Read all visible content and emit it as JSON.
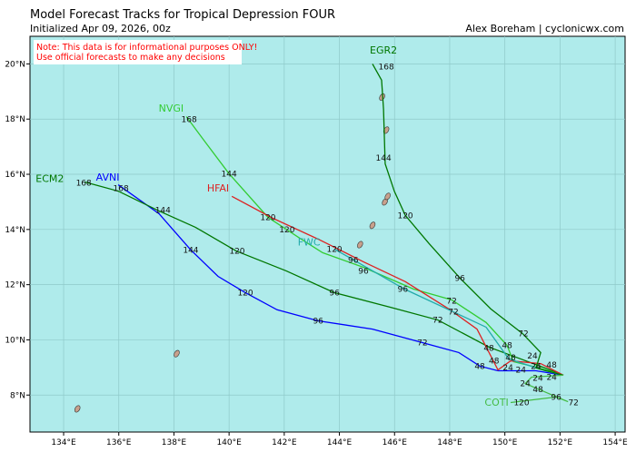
{
  "header": {
    "title": "Model Forecast Tracks  for Tropical Depression FOUR",
    "initialized": "Initialized Apr 09, 2026, 00z",
    "credit": "Alex Boreham | cyclonicwx.com"
  },
  "note": {
    "line1": "Note: This data is for informational purposes ONLY!",
    "line2": "Use official forecasts to make any decisions",
    "color": "#ff0000"
  },
  "map": {
    "lon_range": [
      132.78,
      154.36
    ],
    "lat_range": [
      6.66,
      21.0
    ],
    "ocean_color": "#afebeb",
    "land_color": "#c8a08c",
    "grid": true,
    "lon_ticks": [
      {
        "v": 134,
        "t": "134°E"
      },
      {
        "v": 136,
        "t": "136°E"
      },
      {
        "v": 138,
        "t": "138°E"
      },
      {
        "v": 140,
        "t": "140°E"
      },
      {
        "v": 142,
        "t": "142°E"
      },
      {
        "v": 144,
        "t": "144°E"
      },
      {
        "v": 146,
        "t": "146°E"
      },
      {
        "v": 148,
        "t": "148°E"
      },
      {
        "v": 150,
        "t": "150°E"
      },
      {
        "v": 152,
        "t": "152°E"
      },
      {
        "v": 154,
        "t": "154°E"
      }
    ],
    "lat_ticks": [
      {
        "v": 8,
        "t": "8°N"
      },
      {
        "v": 10,
        "t": "10°N"
      },
      {
        "v": 12,
        "t": "12°N"
      },
      {
        "v": 14,
        "t": "14°N"
      },
      {
        "v": 16,
        "t": "16°N"
      },
      {
        "v": 18,
        "t": "18°N"
      },
      {
        "v": 20,
        "t": "20°N"
      }
    ],
    "islands": [
      [
        144.75,
        13.45
      ],
      [
        145.2,
        14.15
      ],
      [
        145.65,
        15.0
      ],
      [
        145.75,
        15.2
      ],
      [
        145.7,
        17.6
      ],
      [
        145.55,
        18.8
      ],
      [
        134.5,
        7.5
      ],
      [
        138.1,
        9.5
      ]
    ]
  },
  "tracks": [
    {
      "name": "AVNI",
      "color": "#0000ff",
      "label": [
        135.6,
        15.9
      ],
      "points": [
        [
          135.98,
          15.62
        ],
        [
          137.46,
          14.57
        ],
        [
          138.61,
          13.26
        ],
        [
          139.6,
          12.3
        ],
        [
          140.59,
          11.71
        ],
        [
          141.74,
          11.09
        ],
        [
          143.23,
          10.69
        ],
        [
          145.2,
          10.39
        ],
        [
          147.01,
          9.9
        ],
        [
          148.33,
          9.54
        ],
        [
          149.09,
          9.05
        ],
        [
          149.75,
          8.88
        ],
        [
          151.13,
          8.88
        ],
        [
          152.12,
          8.72
        ]
      ],
      "hours": [
        {
          "lon": 135.98,
          "lat": 15.62,
          "h": "168"
        },
        {
          "lon": 138.61,
          "lat": 13.26,
          "h": "144"
        },
        {
          "lon": 140.59,
          "lat": 11.71,
          "h": "120"
        },
        {
          "lon": 143.23,
          "lat": 10.69,
          "h": "96"
        },
        {
          "lon": 147.01,
          "lat": 9.9,
          "h": "72"
        },
        {
          "lon": 149.09,
          "lat": 9.05,
          "h": "48"
        },
        {
          "lon": 150.58,
          "lat": 8.92,
          "h": "24"
        }
      ]
    },
    {
      "name": "ECM2",
      "color": "#007700",
      "label": [
        133.5,
        15.85
      ],
      "points": [
        [
          134.76,
          15.72
        ],
        [
          135.98,
          15.39
        ],
        [
          137.46,
          14.67
        ],
        [
          138.78,
          14.08
        ],
        [
          140.26,
          13.22
        ],
        [
          142.07,
          12.5
        ],
        [
          143.82,
          11.71
        ],
        [
          145.86,
          11.18
        ],
        [
          147.57,
          10.72
        ],
        [
          149.42,
          9.74
        ],
        [
          150.14,
          9.47
        ],
        [
          151.46,
          8.98
        ],
        [
          152.12,
          8.72
        ]
      ],
      "hours": [
        {
          "lon": 134.73,
          "lat": 15.69,
          "h": "168"
        },
        {
          "lon": 137.6,
          "lat": 14.7,
          "h": "144"
        },
        {
          "lon": 140.29,
          "lat": 13.22,
          "h": "120"
        },
        {
          "lon": 143.82,
          "lat": 11.71,
          "h": "96"
        },
        {
          "lon": 147.57,
          "lat": 10.72,
          "h": "72"
        },
        {
          "lon": 149.42,
          "lat": 9.7,
          "h": "48"
        },
        {
          "lon": 151.13,
          "lat": 9.04,
          "h": "24"
        }
      ]
    },
    {
      "name": "NVGI",
      "color": "#33cc33",
      "label": [
        137.9,
        18.4
      ],
      "points": [
        [
          138.45,
          18.09
        ],
        [
          139.11,
          17.2
        ],
        [
          140.0,
          16.02
        ],
        [
          141.41,
          14.44
        ],
        [
          142.57,
          13.68
        ],
        [
          143.39,
          13.16
        ],
        [
          144.87,
          12.63
        ],
        [
          146.69,
          11.84
        ],
        [
          148.07,
          11.45
        ],
        [
          149.32,
          10.63
        ],
        [
          150.08,
          9.8
        ],
        [
          150.31,
          9.21
        ],
        [
          151.13,
          9.01
        ],
        [
          152.12,
          8.72
        ]
      ],
      "hours": [
        {
          "lon": 138.45,
          "lat": 18.12,
          "h": "168"
        },
        {
          "lon": 140.0,
          "lat": 16.02,
          "h": "144"
        },
        {
          "lon": 142.1,
          "lat": 14.0,
          "h": "120"
        },
        {
          "lon": 144.87,
          "lat": 12.5,
          "h": "96"
        },
        {
          "lon": 148.07,
          "lat": 11.42,
          "h": "72"
        },
        {
          "lon": 150.08,
          "lat": 9.8,
          "h": "48"
        },
        {
          "lon": 150.31,
          "lat": 9.0,
          "h": "24"
        }
      ]
    },
    {
      "name": "HFAI",
      "color": "#dd2222",
      "label": [
        139.6,
        15.5
      ],
      "points": [
        [
          140.1,
          15.2
        ],
        [
          141.58,
          14.41
        ],
        [
          143.23,
          13.65
        ],
        [
          144.87,
          12.83
        ],
        [
          146.39,
          12.11
        ],
        [
          147.97,
          11.12
        ],
        [
          148.99,
          10.39
        ],
        [
          149.75,
          8.91
        ],
        [
          150.21,
          9.24
        ],
        [
          151.3,
          9.14
        ],
        [
          152.12,
          8.72
        ]
      ],
      "hours": [
        {
          "lon": 141.41,
          "lat": 14.44,
          "h": "120"
        },
        {
          "lon": 147.97,
          "lat": 11.09,
          "h": "72"
        },
        {
          "lon": 150.21,
          "lat": 9.2,
          "h": "48"
        },
        {
          "lon": 151.0,
          "lat": 9.1,
          "h": "24"
        }
      ]
    },
    {
      "name": "FWC",
      "color": "#22aaaa",
      "label": [
        142.9,
        13.55
      ],
      "points": [
        [
          143.82,
          13.29
        ],
        [
          146.36,
          11.84
        ],
        [
          149.32,
          10.46
        ],
        [
          150.14,
          9.31
        ],
        [
          151.46,
          8.88
        ],
        [
          152.12,
          8.72
        ]
      ],
      "hours": [
        {
          "lon": 143.82,
          "lat": 13.29,
          "h": "120"
        },
        {
          "lon": 144.5,
          "lat": 12.9,
          "h": "96"
        },
        {
          "lon": 146.3,
          "lat": 11.84,
          "h": "96"
        },
        {
          "lon": 150.2,
          "lat": 9.25,
          "h": "48"
        },
        {
          "lon": 151.0,
          "lat": 8.92,
          "h": "24"
        }
      ]
    },
    {
      "name": "EGR2",
      "color": "#007700",
      "label": [
        145.6,
        20.5
      ],
      "points": [
        [
          145.2,
          20.0
        ],
        [
          145.53,
          19.41
        ],
        [
          145.6,
          18.36
        ],
        [
          145.66,
          16.38
        ],
        [
          145.99,
          15.39
        ],
        [
          146.39,
          14.51
        ],
        [
          147.25,
          13.49
        ],
        [
          148.37,
          12.24
        ],
        [
          149.49,
          11.12
        ],
        [
          150.64,
          10.23
        ],
        [
          151.3,
          9.54
        ],
        [
          151.13,
          8.98
        ],
        [
          152.12,
          8.72
        ]
      ],
      "hours": [
        {
          "lon": 145.7,
          "lat": 19.9,
          "h": "168"
        },
        {
          "lon": 145.6,
          "lat": 16.6,
          "h": "144"
        },
        {
          "lon": 146.39,
          "lat": 14.51,
          "h": "120"
        },
        {
          "lon": 148.37,
          "lat": 12.24,
          "h": "96"
        },
        {
          "lon": 150.67,
          "lat": 10.23,
          "h": "72"
        },
        {
          "lon": 151.3,
          "lat": 9.1,
          "h": "48"
        },
        {
          "lon": 151.5,
          "lat": 8.95,
          "h": "24"
        }
      ]
    },
    {
      "name": "COTI",
      "color": "#44bb44",
      "label": [
        149.7,
        7.75
      ],
      "points": [
        [
          152.12,
          8.72
        ],
        [
          150.97,
          8.65
        ],
        [
          150.74,
          8.42
        ],
        [
          151.2,
          8.22
        ],
        [
          152.29,
          7.76
        ],
        [
          151.86,
          7.93
        ],
        [
          150.21,
          7.73
        ]
      ],
      "hours": [
        {
          "lon": 150.74,
          "lat": 8.42,
          "h": "24"
        },
        {
          "lon": 151.2,
          "lat": 8.2,
          "h": "48"
        },
        {
          "lon": 151.86,
          "lat": 7.93,
          "h": "96"
        },
        {
          "lon": 152.29,
          "lat": 7.73,
          "h": "72"
        },
        {
          "lon": 150.21,
          "lat": 7.73,
          "h": "120"
        }
      ]
    }
  ]
}
